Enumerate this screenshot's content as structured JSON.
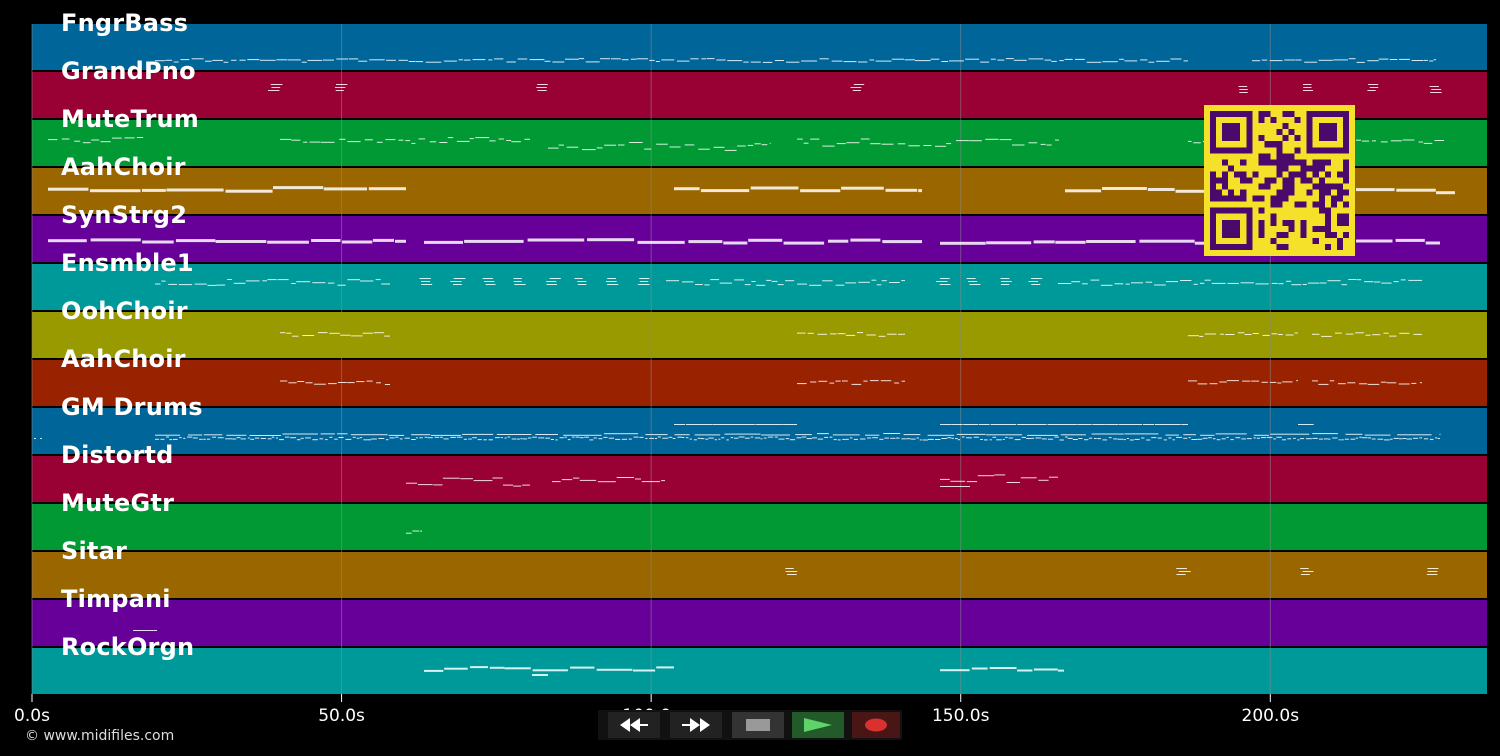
{
  "colors": {
    "background": "#000000",
    "gridline": "#8a8a8a",
    "note": "#ffffff",
    "qr_fg": "#4a0a6b",
    "qr_bg": "#f5e02a"
  },
  "tracks": [
    {
      "name": "FngrBass",
      "color": "#006699"
    },
    {
      "name": "GrandPno",
      "color": "#990033"
    },
    {
      "name": "MuteTrum",
      "color": "#009933"
    },
    {
      "name": "AahChoir",
      "color": "#996600"
    },
    {
      "name": "SynStrg2",
      "color": "#660099"
    },
    {
      "name": "Ensmble1",
      "color": "#009999"
    },
    {
      "name": "OohChoir",
      "color": "#999900"
    },
    {
      "name": "AahChoir",
      "color": "#992200"
    },
    {
      "name": "GM Drums",
      "color": "#006699"
    },
    {
      "name": "Distortd",
      "color": "#990033"
    },
    {
      "name": "MuteGtr",
      "color": "#009933"
    },
    {
      "name": "Sitar",
      "color": "#996600"
    },
    {
      "name": "Timpani",
      "color": "#660099"
    },
    {
      "name": "RockOrgn",
      "color": "#009999"
    }
  ],
  "timeline": {
    "min_seconds": 0,
    "max_seconds": 235,
    "ticks": [
      {
        "value": 0,
        "label": "0.0s"
      },
      {
        "value": 50,
        "label": "50.0s"
      },
      {
        "value": 100,
        "label": "100.0s"
      },
      {
        "value": 150,
        "label": "150.0s"
      },
      {
        "value": 200,
        "label": "200.0s"
      }
    ]
  },
  "copyright": "© www.midifiles.com",
  "transport": {
    "rewind_icon": "rewind-icon",
    "fast_forward_icon": "fast-forward-icon",
    "stop_icon": "stop-icon",
    "play_icon": "play-icon",
    "record_icon": "record-icon"
  }
}
